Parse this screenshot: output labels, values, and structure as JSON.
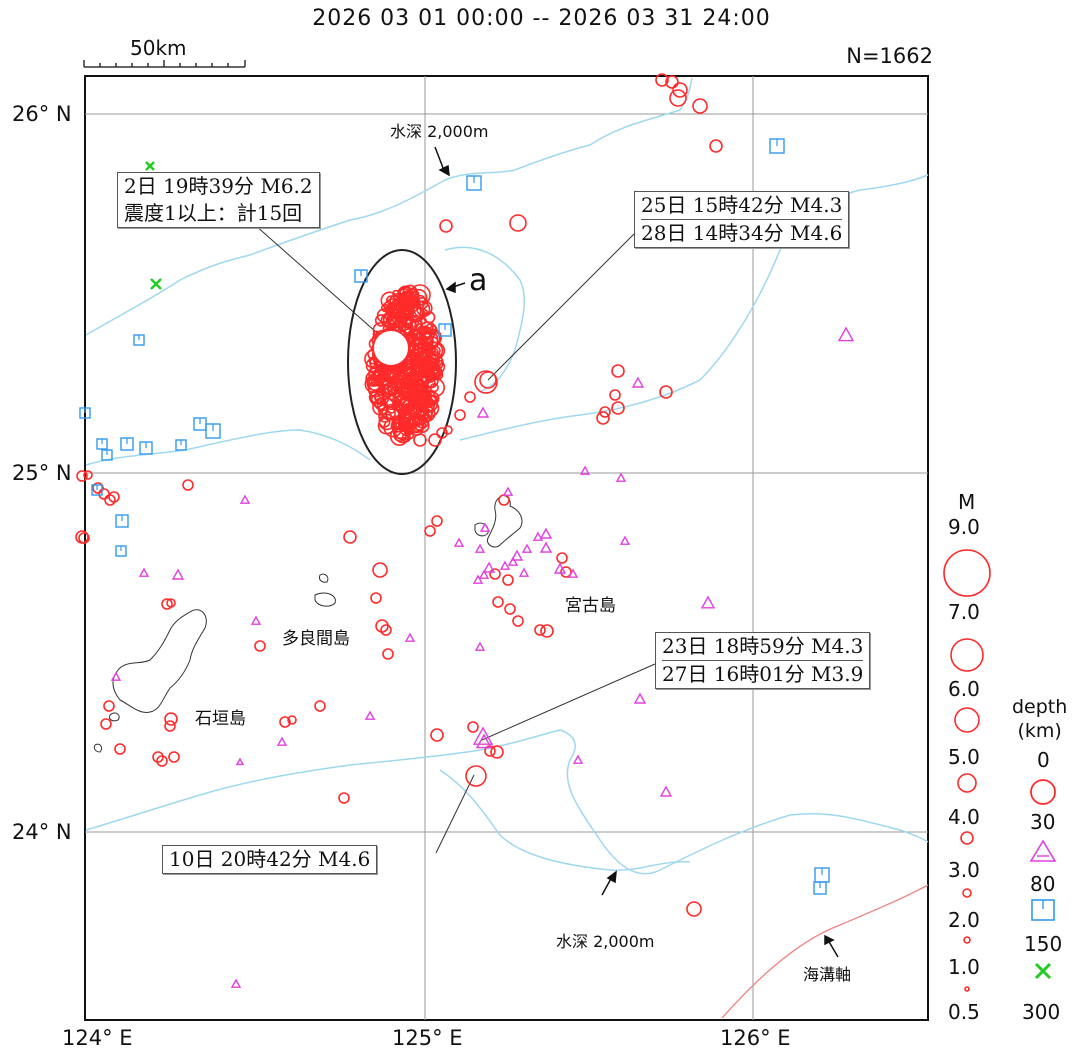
{
  "period": "2026 03 01 00:00 -- 2026 03 31 24:00",
  "count": "N=1662",
  "scale_bar": "50km",
  "lat_labels": [
    "26° N",
    "25° N",
    "24° N"
  ],
  "lon_labels": [
    "124° E",
    "125° E",
    "126° E"
  ],
  "callouts": {
    "main": [
      "2日 19時39分 M6.2",
      "震度1以上：計15回"
    ],
    "north_east": [
      "25日 15時42分 M4.3",
      "28日 14時34分 M4.6"
    ],
    "south_east": [
      "23日 18時59分 M4.3",
      "27日 16時01分 M3.9"
    ],
    "south": [
      "10日 20時42分 M4.6"
    ]
  },
  "region_marker": "a",
  "places": {
    "miyako": "宮古島",
    "tarama": "多良間島",
    "ishigaki": "石垣島"
  },
  "notes": {
    "depth_north": "水深 2,000m",
    "depth_south": "水深 2,000m",
    "trench": "海溝軸"
  },
  "legend": {
    "magnitude_title": "M",
    "magnitude_values": [
      "9.0",
      "7.0",
      "6.0",
      "5.0",
      "4.0",
      "3.0",
      "2.0",
      "1.0",
      "0.5"
    ],
    "depth_title": "depth\n(km)",
    "depth_values": [
      "0",
      "30",
      "80",
      "150",
      "300"
    ]
  },
  "colors": {
    "shallow": "#ff2a2a",
    "mid": "#e040e0",
    "deep": "#3399ee",
    "deepest": "#22cc22",
    "isobath": "#9fd8ee",
    "trench": "#f08080",
    "grid": "#999999"
  }
}
